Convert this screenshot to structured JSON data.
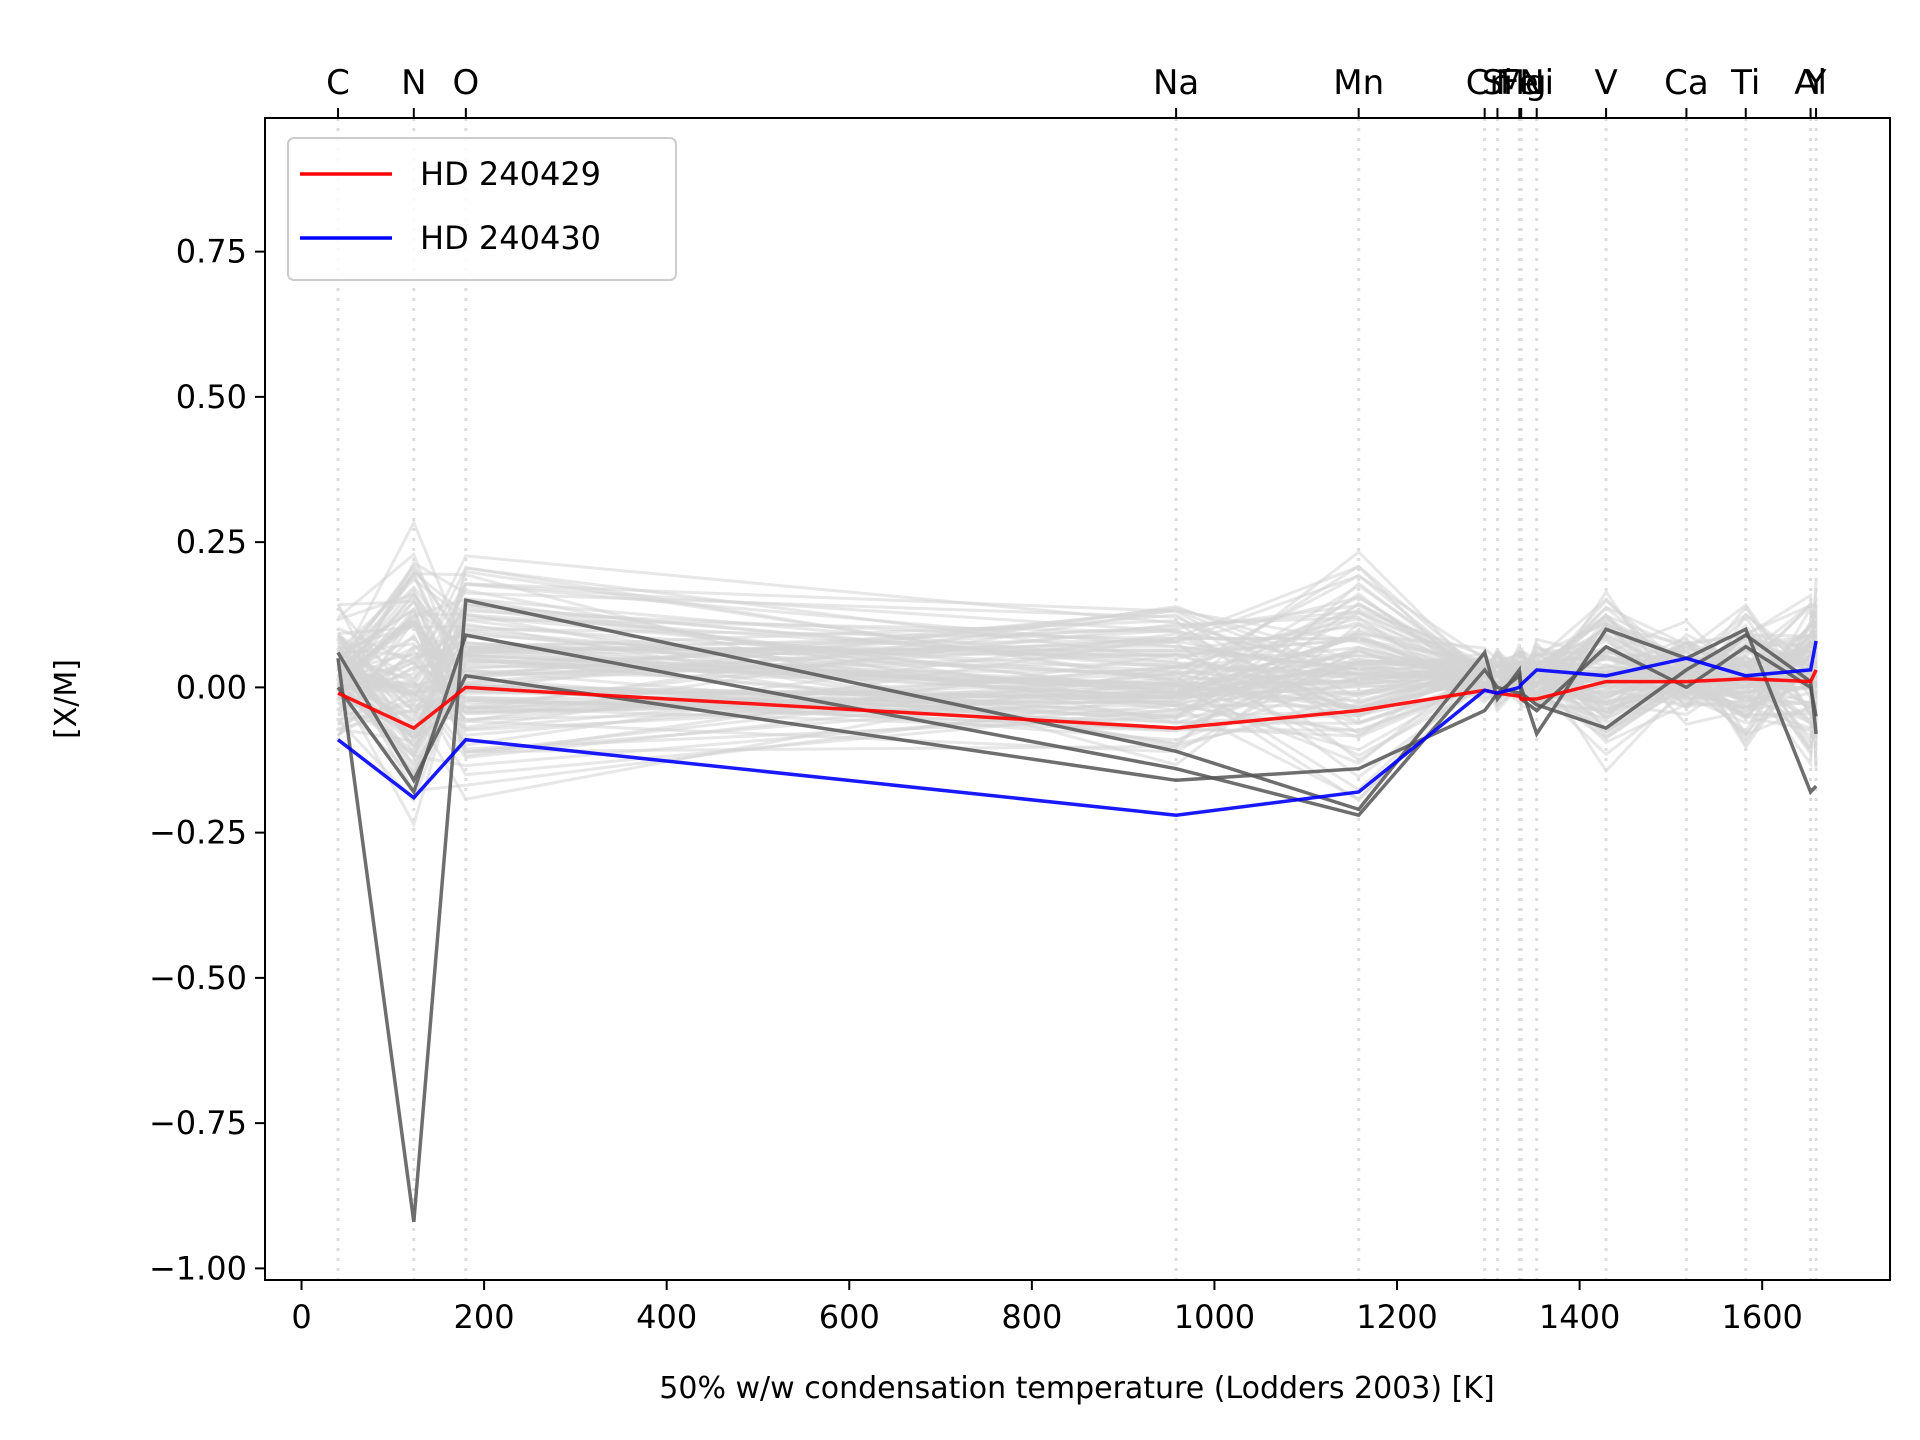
{
  "chart_data": {
    "type": "line",
    "xlabel": "50% w/w condensation temperature (Lodders 2003) [K]",
    "ylabel": "[X/M]",
    "xlim": [
      -40,
      1740
    ],
    "ylim": [
      -1.02,
      0.98
    ],
    "x_ticks": [
      0,
      200,
      400,
      600,
      800,
      1000,
      1200,
      1400,
      1600
    ],
    "y_ticks": [
      0.75,
      0.5,
      0.25,
      0.0,
      -0.25,
      -0.5,
      -0.75,
      -1.0
    ],
    "x_tick_labels": [
      "0",
      "200",
      "400",
      "600",
      "800",
      "1000",
      "1200",
      "1400",
      "1600"
    ],
    "y_tick_labels": [
      "0.75",
      "0.50",
      "0.25",
      "0.00",
      "−0.25",
      "−0.50",
      "−0.75",
      "−1.00"
    ],
    "grid": false,
    "legend_position": "top-left",
    "elements": [
      {
        "label": "C",
        "tc": 40
      },
      {
        "label": "N",
        "tc": 123
      },
      {
        "label": "O",
        "tc": 180
      },
      {
        "label": "Na",
        "tc": 958
      },
      {
        "label": "Mn",
        "tc": 1158
      },
      {
        "label": "Cr",
        "tc": 1296
      },
      {
        "label": "Si",
        "tc": 1310
      },
      {
        "label": "Fe",
        "tc": 1334
      },
      {
        "label": "Mg",
        "tc": 1336
      },
      {
        "label": "Ni",
        "tc": 1353
      },
      {
        "label": "V",
        "tc": 1429
      },
      {
        "label": "Ca",
        "tc": 1517
      },
      {
        "label": "Ti",
        "tc": 1582
      },
      {
        "label": "Al",
        "tc": 1653
      },
      {
        "label": "Y",
        "tc": 1659
      }
    ],
    "series": [
      {
        "name": "HD 240429",
        "color": "#ff0000",
        "values": [
          -0.01,
          -0.07,
          0.0,
          -0.07,
          -0.04,
          -0.005,
          -0.01,
          -0.015,
          -0.02,
          -0.02,
          0.01,
          0.01,
          0.015,
          0.01,
          0.03
        ]
      },
      {
        "name": "HD 240430",
        "color": "#0000ff",
        "values": [
          -0.09,
          -0.19,
          -0.09,
          -0.22,
          -0.18,
          -0.005,
          -0.01,
          0.0,
          0.005,
          0.03,
          0.02,
          0.05,
          0.02,
          0.03,
          0.08
        ]
      }
    ],
    "highlight_series": [
      {
        "color": "#555555",
        "values": [
          0.05,
          -0.92,
          0.15,
          -0.11,
          -0.21,
          0.06,
          -0.02,
          0.03,
          0.0,
          -0.08,
          0.1,
          0.05,
          0.1,
          -0.18,
          -0.17
        ]
      },
      {
        "color": "#555555",
        "values": [
          0.0,
          -0.18,
          0.09,
          -0.14,
          -0.22,
          0.03,
          0.0,
          -0.01,
          -0.02,
          -0.04,
          0.07,
          0.0,
          0.07,
          0.0,
          -0.05
        ]
      },
      {
        "color": "#555555",
        "values": [
          0.06,
          -0.16,
          0.02,
          -0.16,
          -0.14,
          -0.04,
          -0.01,
          0.02,
          -0.01,
          -0.03,
          -0.07,
          0.03,
          0.09,
          0.01,
          -0.08
        ]
      }
    ],
    "background_color": "#d3d3d3"
  },
  "legend": {
    "item1": "HD 240429",
    "item2": "HD 240430"
  }
}
